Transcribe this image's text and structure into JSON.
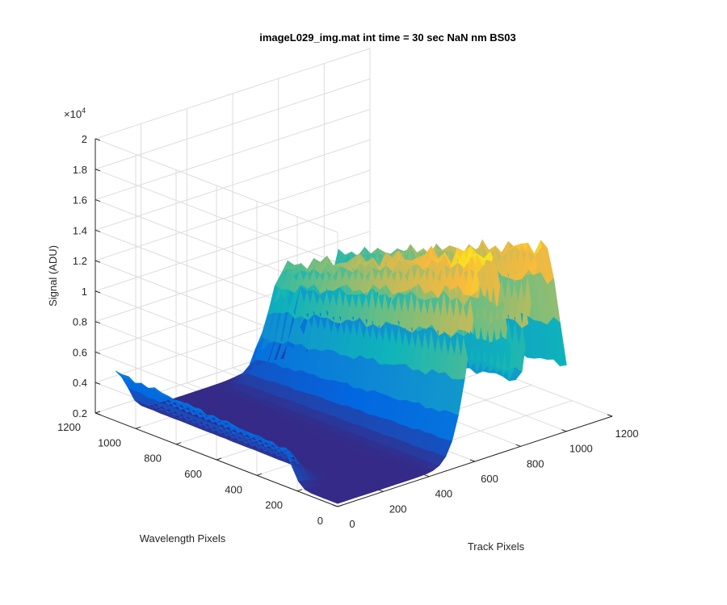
{
  "chart_data": {
    "type": "surface3d",
    "title": "imageL029_img.mat int time = 30 sec  NaN nm BS03",
    "xlabel": "Track Pixels",
    "ylabel": "Wavelength Pixels",
    "zlabel": "Signal (ADU)",
    "x_ticks": [
      "0",
      "200",
      "400",
      "600",
      "800",
      "1000",
      "1200"
    ],
    "y_ticks": [
      "0",
      "200",
      "400",
      "600",
      "800",
      "1000",
      "1200"
    ],
    "z_ticks": [
      "0.2",
      "0.4",
      "0.6",
      "0.8",
      "1",
      "1.2",
      "1.4",
      "1.6",
      "1.8",
      "2"
    ],
    "z_exponent_base": "×10",
    "z_exponent_power": "4",
    "xlim": [
      0,
      1200
    ],
    "ylim": [
      0,
      1200
    ],
    "zlim": [
      2000,
      20000
    ],
    "grid": true,
    "colormap": [
      "#352a87",
      "#0268e1",
      "#108ed2",
      "#0fb4ba",
      "#65be86",
      "#bfbb5b",
      "#f8ba3d",
      "#f9fb0e"
    ],
    "series": [
      {
        "x_center": 0,
        "x_halfwidth": 90,
        "y_range": [
          270,
          1100
        ],
        "peak": 5200
      },
      {
        "x_center": 660,
        "x_halfwidth": 140,
        "y_range": [
          0,
          1000
        ],
        "peak": 15500
      },
      {
        "x_center": 900,
        "x_halfwidth": 120,
        "y_range": [
          0,
          1000
        ],
        "peak": 14800
      }
    ],
    "baseline": 2200
  }
}
